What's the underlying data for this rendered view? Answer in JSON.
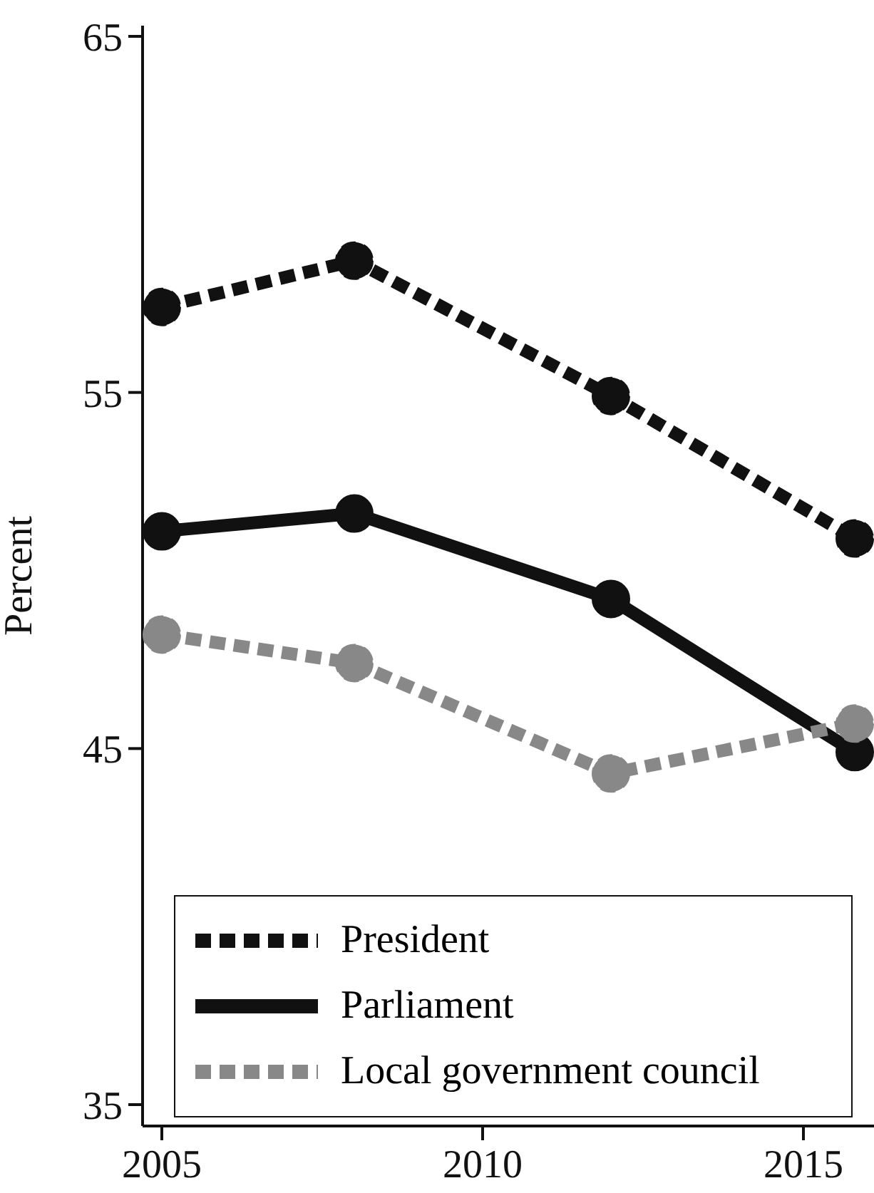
{
  "chart_data": {
    "type": "line",
    "ylabel": "Percent",
    "x": [
      2005,
      2008,
      2012,
      2015.8
    ],
    "xlim": [
      2004.7,
      2016.1
    ],
    "xticks": [
      2005,
      2010,
      2015
    ],
    "ylim": [
      34.4,
      65.3
    ],
    "yticks": [
      35,
      45,
      55,
      65
    ],
    "grid": false,
    "legend": "bottom left",
    "marker": "circle",
    "series": [
      {
        "name": "President",
        "color": "#111111",
        "line_style": "dashed",
        "values": [
          57.4,
          58.7,
          54.9,
          50.9
        ]
      },
      {
        "name": "Parliament",
        "color": "#111111",
        "line_style": "solid",
        "values": [
          51.1,
          51.6,
          49.2,
          44.9
        ]
      },
      {
        "name": "Local government council",
        "color": "#888888",
        "line_style": "dashed",
        "values": [
          48.2,
          47.4,
          44.3,
          45.7
        ]
      }
    ]
  }
}
